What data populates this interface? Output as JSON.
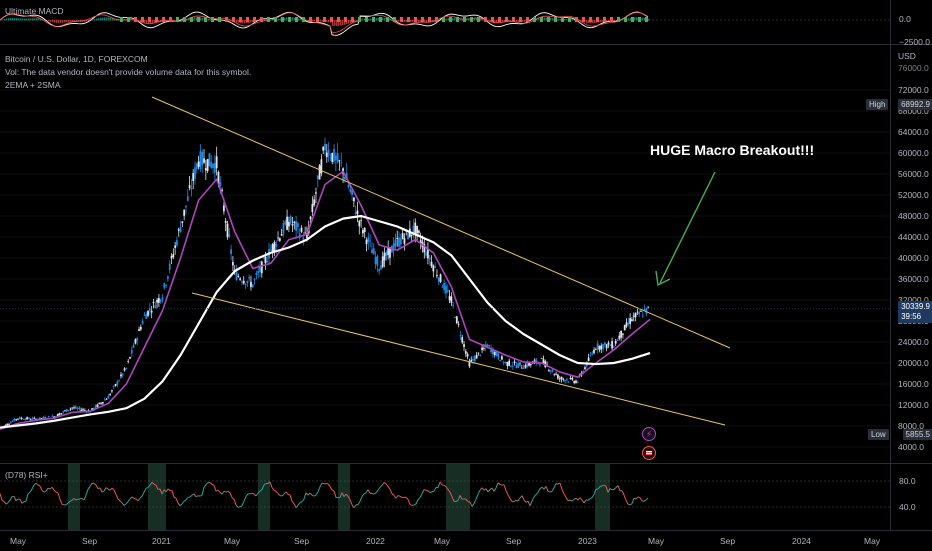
{
  "macd": {
    "title": "Ultimate MACD",
    "ticks": [
      {
        "label": "0.0",
        "value": 0
      },
      {
        "label": "−2500.0",
        "value": -2500
      }
    ]
  },
  "main": {
    "title": "Bitcoin / U.S. Dollar, 1D, FOREXCOM",
    "volume_note": "Vol: The data vendor doesn't provide volume data for this symbol.",
    "indicator": "2EMA + 2SMA",
    "annotation": "HUGE Macro Breakout!!!",
    "unit": "USD",
    "high_label": "High",
    "high_value": "68992.9",
    "low_label": "Low",
    "low_value": "5855.5",
    "last_price": "30339.9",
    "countdown": "39:56",
    "price_ticks": [
      "72000.0",
      "68000.0",
      "64000.0",
      "60000.0",
      "56000.0",
      "52000.0",
      "48000.0",
      "44000.0",
      "40000.0",
      "36000.0",
      "32000.0",
      "28000.0",
      "24000.0",
      "20000.0",
      "16000.0",
      "12000.0",
      "8000.0",
      "4000.0"
    ],
    "partial_top_tick": "76000.0"
  },
  "rsi": {
    "title": "(D78) RSI+",
    "ticks": [
      "80.0",
      "40.0"
    ]
  },
  "time_axis": [
    "May",
    "Sep",
    "2021",
    "May",
    "Sep",
    "2022",
    "May",
    "Sep",
    "2023",
    "May",
    "Sep",
    "2024",
    "May"
  ],
  "colors": {
    "up": "#1e88e5",
    "down": "#e0e3eb",
    "ema": "#ab47bc",
    "sma": "#ffffff",
    "trendline": "#e8c469",
    "arrow": "#4caf50",
    "rsi_up": "#26a69a",
    "rsi_down": "#ef5350"
  },
  "chart_data": {
    "type": "line",
    "title": "Bitcoin / U.S. Dollar, 1D, FOREXCOM",
    "ylabel": "USD",
    "ylim": [
      4000,
      76000
    ],
    "x": [
      "2020-04",
      "2020-05",
      "2020-06",
      "2020-07",
      "2020-08",
      "2020-09",
      "2020-10",
      "2020-11",
      "2020-12",
      "2021-01",
      "2021-02",
      "2021-03",
      "2021-04",
      "2021-05",
      "2021-06",
      "2021-07",
      "2021-08",
      "2021-09",
      "2021-10",
      "2021-11",
      "2021-12",
      "2022-01",
      "2022-02",
      "2022-03",
      "2022-04",
      "2022-05",
      "2022-06",
      "2022-07",
      "2022-08",
      "2022-09",
      "2022-10",
      "2022-11",
      "2022-12",
      "2023-01",
      "2023-02",
      "2023-03",
      "2023-04"
    ],
    "series": [
      {
        "name": "BTCUSD",
        "values": [
          7500,
          9500,
          9300,
          9800,
          11500,
          10800,
          13500,
          19000,
          28900,
          33000,
          46000,
          58800,
          57800,
          37000,
          35000,
          41500,
          47100,
          43800,
          61300,
          57000,
          46200,
          38500,
          43000,
          45500,
          38600,
          31800,
          19900,
          23300,
          20000,
          19400,
          20500,
          17100,
          16500,
          23100,
          23500,
          28500,
          30339.9
        ]
      },
      {
        "name": "EMA",
        "values": [
          7400,
          8500,
          9100,
          9500,
          10600,
          10800,
          12300,
          16000,
          23000,
          30000,
          40000,
          51000,
          55000,
          45000,
          38000,
          39000,
          43500,
          44500,
          54000,
          56500,
          50000,
          42500,
          41500,
          43500,
          41000,
          34500,
          24500,
          23000,
          21500,
          20200,
          20000,
          18300,
          17300,
          20000,
          22500,
          25500,
          28300
        ]
      },
      {
        "name": "SMA",
        "values": [
          7700,
          8100,
          8500,
          9000,
          9600,
          10200,
          10700,
          11400,
          13200,
          16500,
          21500,
          27500,
          33500,
          37500,
          39500,
          41000,
          42000,
          43500,
          46000,
          47500,
          48000,
          47000,
          46000,
          44500,
          43000,
          40500,
          36000,
          31500,
          28000,
          25500,
          23500,
          21500,
          20000,
          19800,
          20000,
          20800,
          21900
        ]
      }
    ],
    "price_high": "68992.9",
    "price_low": "5855.5"
  }
}
